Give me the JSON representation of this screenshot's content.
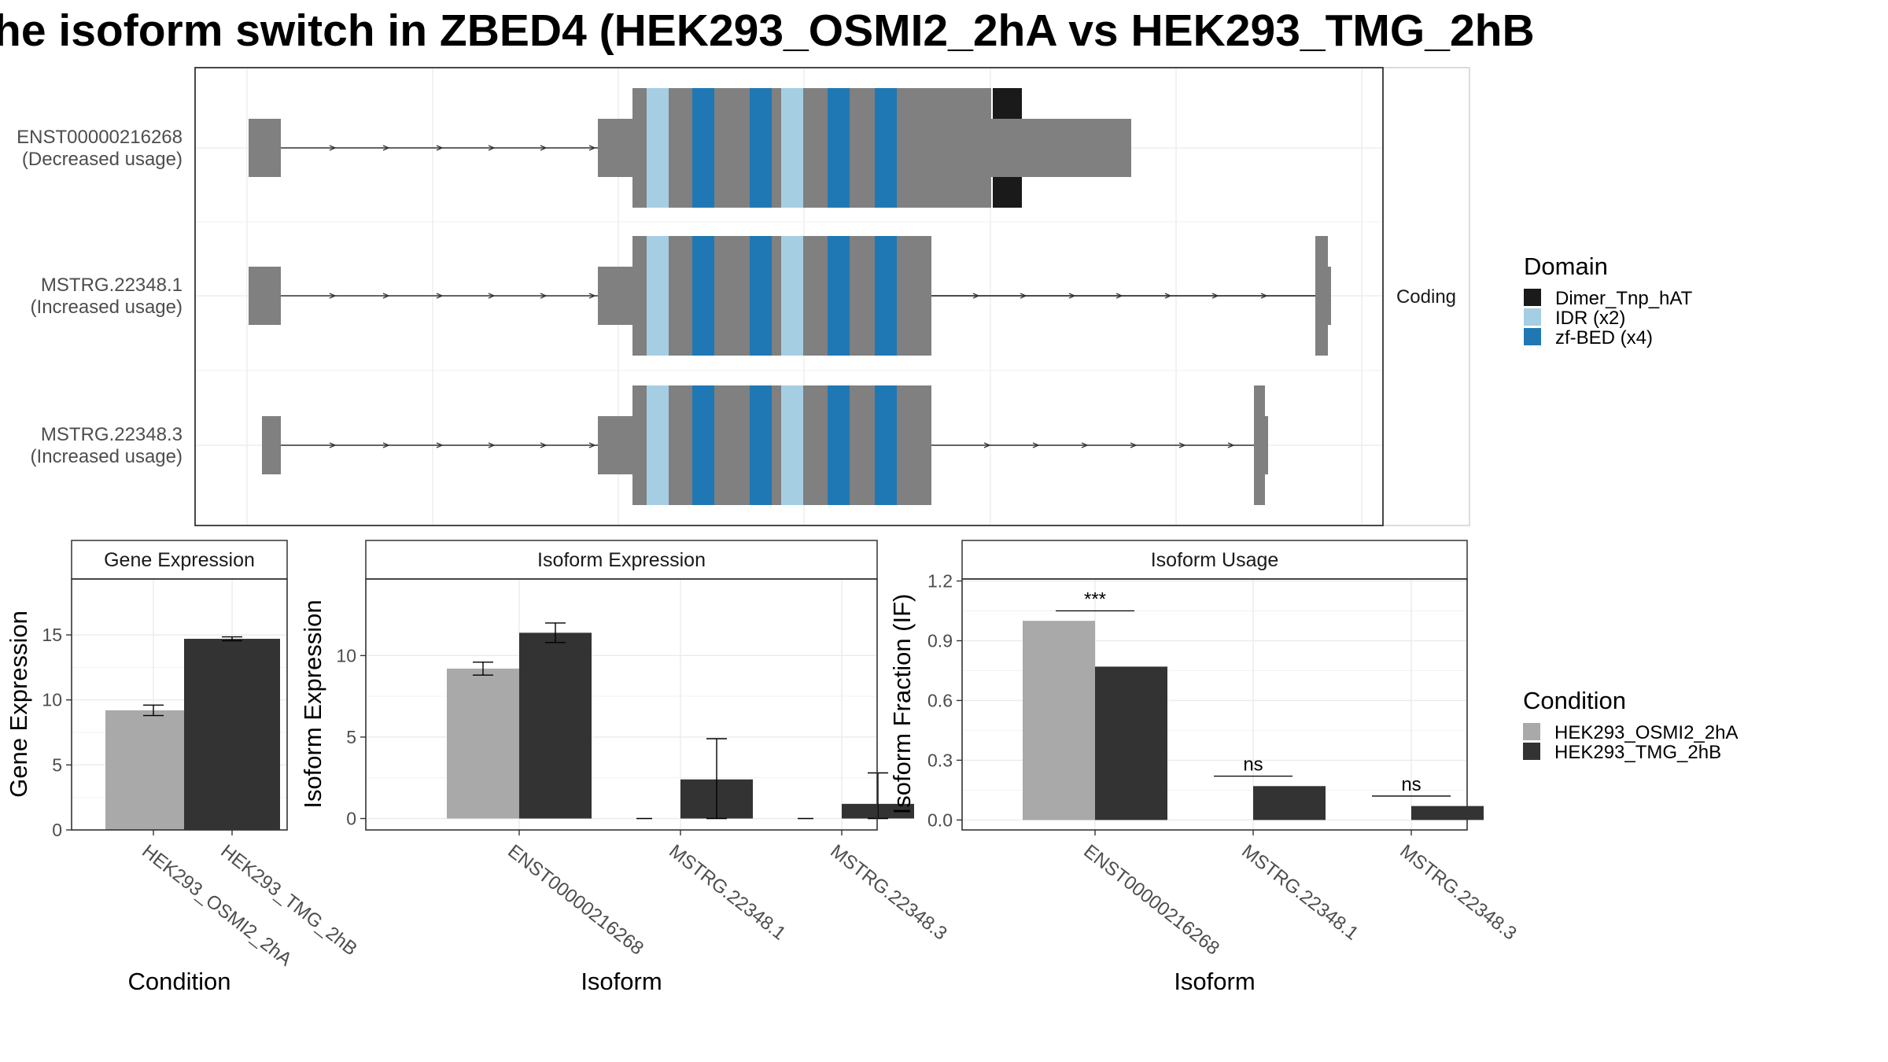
{
  "title": "he isoform switch in ZBED4 (HEK293_OSMI2_2hA vs HEK293_TMG_2hB",
  "structure_panel": {
    "strip_label": "Coding",
    "transcripts": [
      {
        "id": "ENST00000216268",
        "note": "(Decreased usage)"
      },
      {
        "id": "MSTRG.22348.1",
        "note": "(Increased usage)"
      },
      {
        "id": "MSTRG.22348.3",
        "note": "(Increased usage)"
      }
    ]
  },
  "legend_domain": {
    "title": "Domain",
    "items": [
      {
        "label": "Dimer_Tnp_hAT",
        "color": "#1a1a1a"
      },
      {
        "label": "IDR (x2)",
        "color": "#a6cee3"
      },
      {
        "label": "zf-BED (x4)",
        "color": "#1f78b4"
      }
    ]
  },
  "legend_condition": {
    "title": "Condition",
    "items": [
      {
        "label": "HEK293_OSMI2_2hA",
        "color": "#a9a9a9"
      },
      {
        "label": "HEK293_TMG_2hB",
        "color": "#333333"
      }
    ]
  },
  "chart_data": [
    {
      "type": "bar",
      "title": "Gene Expression",
      "xlabel": "Condition",
      "ylabel": "Gene Expression",
      "ylim": [
        0,
        19.3
      ],
      "yticks": [
        0,
        5,
        10,
        15
      ],
      "categories": [
        "HEK293_OSMI2_2hA",
        "HEK293_TMG_2hB"
      ],
      "values": [
        9.2,
        14.7
      ],
      "errors": [
        0.4,
        0.15
      ],
      "colors": [
        "#a9a9a9",
        "#333333"
      ],
      "grid": true
    },
    {
      "type": "bar",
      "title": "Isoform Expression",
      "xlabel": "Isoform",
      "ylabel": "Isoform Expression",
      "ylim": [
        -0.7,
        14.7
      ],
      "yticks": [
        0,
        5,
        10
      ],
      "categories": [
        "ENST00000216268",
        "MSTRG.22348.1",
        "MSTRG.22348.3"
      ],
      "series": [
        {
          "name": "HEK293_OSMI2_2hA",
          "values": [
            9.2,
            0.0,
            0.0
          ],
          "errors": [
            0.4,
            0,
            0
          ]
        },
        {
          "name": "HEK293_TMG_2hB",
          "values": [
            11.4,
            2.4,
            0.9
          ],
          "errors": [
            0.6,
            2.5,
            1.9
          ]
        }
      ],
      "grid": true
    },
    {
      "type": "bar",
      "title": "Isoform Usage",
      "xlabel": "Isoform",
      "ylabel": "Isoform Fraction (IF)",
      "ylim": [
        -0.05,
        1.21
      ],
      "yticks": [
        0.0,
        0.3,
        0.6,
        0.9,
        1.2
      ],
      "ytick_labels": [
        "0.0",
        "0.3",
        "0.6",
        "0.9",
        "1.2"
      ],
      "categories": [
        "ENST00000216268",
        "MSTRG.22348.1",
        "MSTRG.22348.3"
      ],
      "series": [
        {
          "name": "HEK293_OSMI2_2hA",
          "values": [
            1.0,
            0.0,
            0.0
          ]
        },
        {
          "name": "HEK293_TMG_2hB",
          "values": [
            0.77,
            0.17,
            0.07
          ]
        }
      ],
      "significance": [
        "***",
        "ns",
        "ns"
      ],
      "grid": true
    }
  ]
}
